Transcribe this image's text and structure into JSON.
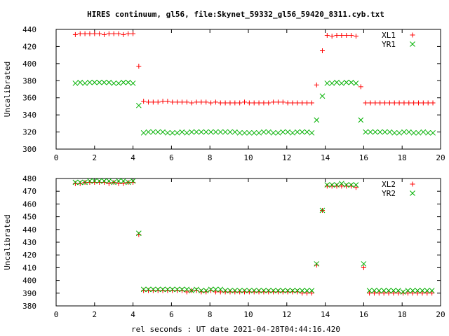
{
  "title": "HIRES continuum, gl56, file:Skynet_59332_gl56_59420_8311.cyb.txt",
  "xlabel": "rel seconds : UT date 2021-04-28T04:44:16.420",
  "chart_data": [
    {
      "type": "scatter",
      "ylabel": "Uncalibrated",
      "xlim": [
        0,
        20
      ],
      "ylim": [
        300,
        440
      ],
      "xticks": [
        0,
        2,
        4,
        6,
        8,
        10,
        12,
        14,
        16,
        18,
        20
      ],
      "yticks": [
        300,
        320,
        340,
        360,
        380,
        400,
        420,
        440
      ],
      "legend_position": "top-right",
      "grid": false,
      "series": [
        {
          "name": "XL1",
          "marker": "plus",
          "color": "#ff0000",
          "x": [
            1.0,
            1.25,
            1.5,
            1.75,
            2.0,
            2.25,
            2.5,
            2.75,
            3.0,
            3.25,
            3.5,
            3.75,
            4.0,
            4.3,
            4.55,
            4.8,
            5.05,
            5.3,
            5.55,
            5.8,
            6.05,
            6.3,
            6.55,
            6.8,
            7.05,
            7.3,
            7.55,
            7.8,
            8.05,
            8.3,
            8.55,
            8.8,
            9.05,
            9.3,
            9.55,
            9.8,
            10.05,
            10.3,
            10.55,
            10.8,
            11.05,
            11.3,
            11.55,
            11.8,
            12.05,
            12.3,
            12.55,
            12.8,
            13.05,
            13.3,
            13.55,
            13.85,
            14.1,
            14.35,
            14.6,
            14.85,
            15.1,
            15.35,
            15.6,
            15.85,
            16.1,
            16.35,
            16.6,
            16.85,
            17.1,
            17.35,
            17.6,
            17.85,
            18.1,
            18.35,
            18.6,
            18.85,
            19.1,
            19.35,
            19.6
          ],
          "y": [
            434,
            435,
            435,
            435,
            435,
            435,
            434,
            435,
            435,
            435,
            434,
            435,
            435,
            397,
            356,
            355,
            355,
            355,
            356,
            356,
            355,
            355,
            355,
            355,
            354,
            355,
            355,
            355,
            354,
            355,
            354,
            354,
            354,
            354,
            354,
            355,
            354,
            354,
            354,
            354,
            354,
            355,
            355,
            355,
            354,
            354,
            354,
            354,
            354,
            354,
            375,
            415,
            433,
            432,
            433,
            433,
            433,
            433,
            432,
            373,
            354,
            354,
            354,
            354,
            354,
            354,
            354,
            354,
            354,
            354,
            354,
            354,
            354,
            354,
            354
          ]
        },
        {
          "name": "YR1",
          "marker": "cross",
          "color": "#00b000",
          "x": [
            1.0,
            1.25,
            1.5,
            1.75,
            2.0,
            2.25,
            2.5,
            2.75,
            3.0,
            3.25,
            3.5,
            3.75,
            4.0,
            4.3,
            4.55,
            4.8,
            5.05,
            5.3,
            5.55,
            5.8,
            6.05,
            6.3,
            6.55,
            6.8,
            7.05,
            7.3,
            7.55,
            7.8,
            8.05,
            8.3,
            8.55,
            8.8,
            9.05,
            9.3,
            9.55,
            9.8,
            10.05,
            10.3,
            10.55,
            10.8,
            11.05,
            11.3,
            11.55,
            11.8,
            12.05,
            12.3,
            12.55,
            12.8,
            13.05,
            13.3,
            13.55,
            13.85,
            14.1,
            14.35,
            14.6,
            14.85,
            15.1,
            15.35,
            15.6,
            15.85,
            16.1,
            16.35,
            16.6,
            16.85,
            17.1,
            17.35,
            17.6,
            17.85,
            18.1,
            18.35,
            18.6,
            18.85,
            19.1,
            19.35,
            19.6
          ],
          "y": [
            377,
            378,
            377,
            378,
            378,
            378,
            378,
            378,
            377,
            377,
            378,
            378,
            377,
            351,
            319,
            320,
            320,
            320,
            320,
            319,
            319,
            319,
            320,
            319,
            320,
            320,
            320,
            320,
            320,
            320,
            320,
            320,
            320,
            320,
            319,
            319,
            319,
            319,
            319,
            320,
            320,
            319,
            319,
            320,
            320,
            319,
            320,
            320,
            320,
            319,
            334,
            362,
            377,
            377,
            378,
            377,
            378,
            378,
            377,
            334,
            320,
            320,
            320,
            320,
            320,
            320,
            319,
            319,
            320,
            320,
            319,
            319,
            320,
            319,
            319
          ]
        }
      ]
    },
    {
      "type": "scatter",
      "ylabel": "Uncalibrated",
      "xlim": [
        0,
        20
      ],
      "ylim": [
        380,
        480
      ],
      "xticks": [
        0,
        2,
        4,
        6,
        8,
        10,
        12,
        14,
        16,
        18,
        20
      ],
      "yticks": [
        380,
        390,
        400,
        410,
        420,
        430,
        440,
        450,
        460,
        470,
        480
      ],
      "legend_position": "top-right",
      "grid": false,
      "series": [
        {
          "name": "XL2",
          "marker": "plus",
          "color": "#ff0000",
          "x": [
            1.0,
            1.25,
            1.5,
            1.75,
            2.0,
            2.25,
            2.5,
            2.75,
            3.0,
            3.25,
            3.5,
            3.75,
            4.0,
            4.3,
            4.55,
            4.8,
            5.05,
            5.3,
            5.55,
            5.8,
            6.05,
            6.3,
            6.55,
            6.8,
            7.05,
            7.3,
            7.55,
            7.8,
            8.05,
            8.3,
            8.55,
            8.8,
            9.05,
            9.3,
            9.55,
            9.8,
            10.05,
            10.3,
            10.55,
            10.8,
            11.05,
            11.3,
            11.55,
            11.8,
            12.05,
            12.3,
            12.55,
            12.8,
            13.05,
            13.3,
            13.55,
            13.85,
            14.1,
            14.35,
            14.6,
            14.85,
            15.1,
            15.35,
            15.6,
            16.0,
            16.3,
            16.55,
            16.8,
            17.05,
            17.3,
            17.55,
            17.8,
            18.05,
            18.3,
            18.55,
            18.8,
            19.05,
            19.3,
            19.55
          ],
          "y": [
            476,
            476,
            477,
            477,
            477,
            477,
            477,
            476,
            477,
            476,
            476,
            477,
            477,
            436,
            392,
            392,
            392,
            392,
            392,
            392,
            392,
            392,
            392,
            391,
            392,
            392,
            391,
            391,
            392,
            391,
            391,
            391,
            391,
            391,
            391,
            391,
            391,
            391,
            391,
            391,
            391,
            391,
            391,
            391,
            391,
            391,
            391,
            390,
            390,
            390,
            412,
            455,
            474,
            474,
            474,
            474,
            474,
            474,
            473,
            410,
            390,
            390,
            390,
            390,
            390,
            390,
            390,
            390,
            390,
            390,
            390,
            390,
            390,
            390
          ]
        },
        {
          "name": "YR2",
          "marker": "cross",
          "color": "#00b000",
          "x": [
            1.0,
            1.25,
            1.5,
            1.75,
            2.0,
            2.25,
            2.5,
            2.75,
            3.0,
            3.25,
            3.5,
            3.75,
            4.0,
            4.3,
            4.55,
            4.8,
            5.05,
            5.3,
            5.55,
            5.8,
            6.05,
            6.3,
            6.55,
            6.8,
            7.05,
            7.3,
            7.55,
            7.8,
            8.05,
            8.3,
            8.55,
            8.8,
            9.05,
            9.3,
            9.55,
            9.8,
            10.05,
            10.3,
            10.55,
            10.8,
            11.05,
            11.3,
            11.55,
            11.8,
            12.05,
            12.3,
            12.55,
            12.8,
            13.05,
            13.3,
            13.55,
            13.85,
            14.1,
            14.35,
            14.6,
            14.85,
            15.1,
            15.35,
            15.6,
            16.0,
            16.3,
            16.55,
            16.8,
            17.05,
            17.3,
            17.55,
            17.8,
            18.05,
            18.3,
            18.55,
            18.8,
            19.05,
            19.3,
            19.55
          ],
          "y": [
            477,
            477,
            477,
            478,
            478,
            478,
            478,
            478,
            477,
            478,
            478,
            477,
            478,
            437,
            393,
            393,
            393,
            393,
            393,
            393,
            393,
            393,
            393,
            393,
            392,
            393,
            392,
            392,
            393,
            393,
            393,
            392,
            392,
            392,
            392,
            392,
            392,
            392,
            392,
            392,
            392,
            392,
            392,
            392,
            392,
            392,
            392,
            392,
            392,
            392,
            413,
            455,
            475,
            475,
            475,
            476,
            475,
            475,
            475,
            413,
            392,
            392,
            392,
            392,
            392,
            392,
            392,
            391,
            392,
            392,
            392,
            392,
            392,
            392
          ]
        }
      ]
    }
  ]
}
